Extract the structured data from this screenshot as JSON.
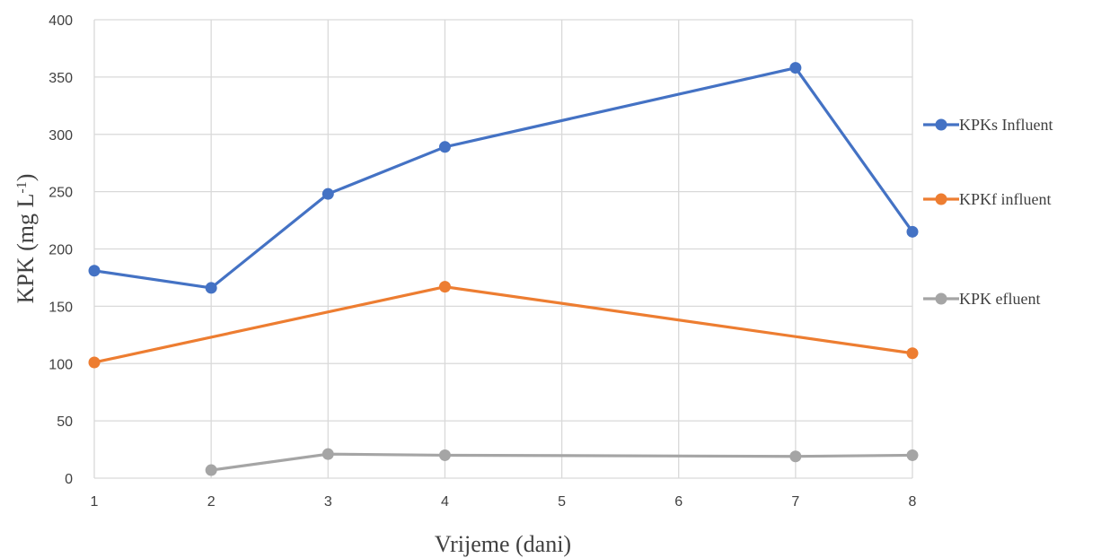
{
  "chart_data": {
    "type": "line",
    "x_ticks": [
      "1",
      "2",
      "3",
      "4",
      "5",
      "6",
      "7",
      "8"
    ],
    "xlim": [
      1,
      8
    ],
    "ylim": [
      0,
      400
    ],
    "y_ticks": [
      "0",
      "50",
      "100",
      "150",
      "200",
      "250",
      "300",
      "350",
      "400"
    ],
    "xlabel": "Vrijeme (dani)",
    "ylabel": {
      "main": "KPK (mg  L",
      "sup": "-1",
      "close": ")"
    },
    "grid": true,
    "legend_position": "right",
    "series": [
      {
        "name": "KPKs Influent",
        "color": "#4472C4",
        "points": [
          [
            1,
            181
          ],
          [
            2,
            166
          ],
          [
            3,
            248
          ],
          [
            4,
            289
          ],
          [
            7,
            358
          ],
          [
            8,
            215
          ]
        ]
      },
      {
        "name": "KPKf influent",
        "color": "#ED7D31",
        "points": [
          [
            1,
            101
          ],
          [
            4,
            167
          ],
          [
            8,
            109
          ]
        ]
      },
      {
        "name": "KPK efluent",
        "color": "#A5A5A5",
        "points": [
          [
            2,
            7
          ],
          [
            3,
            21
          ],
          [
            4,
            20
          ],
          [
            7,
            19
          ],
          [
            8,
            20
          ]
        ]
      }
    ]
  }
}
